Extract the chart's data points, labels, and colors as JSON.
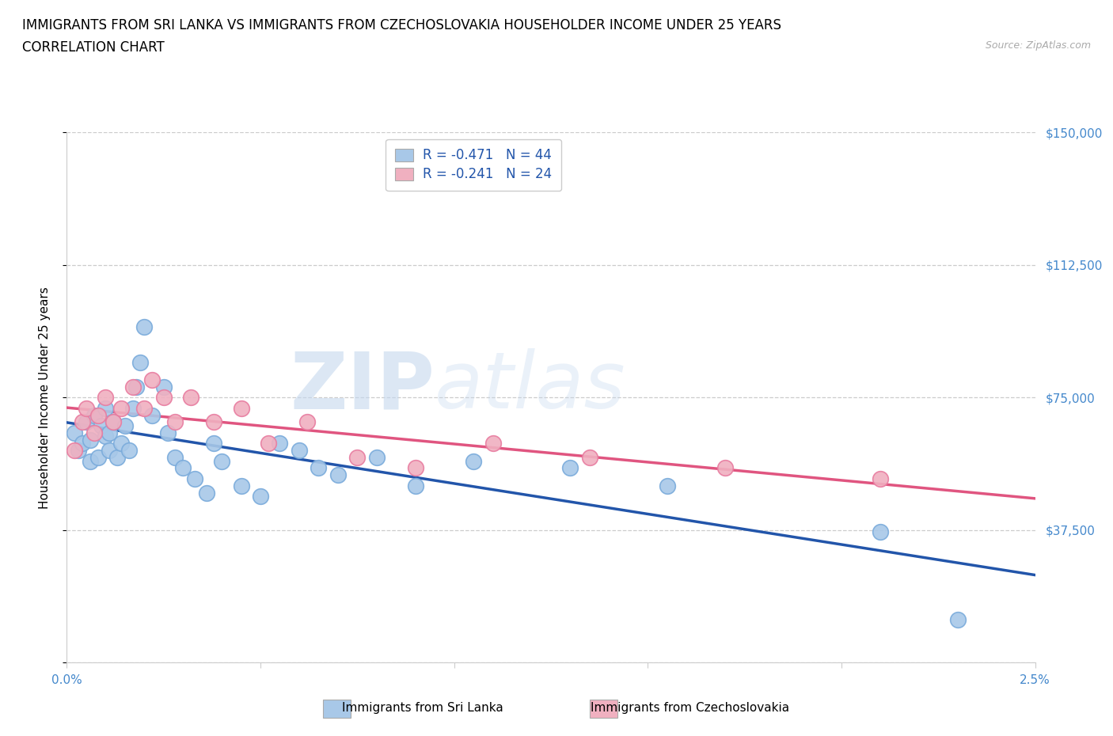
{
  "title_line1": "IMMIGRANTS FROM SRI LANKA VS IMMIGRANTS FROM CZECHOSLOVAKIA HOUSEHOLDER INCOME UNDER 25 YEARS",
  "title_line2": "CORRELATION CHART",
  "source_text": "Source: ZipAtlas.com",
  "ylabel": "Householder Income Under 25 years",
  "x_min": 0.0,
  "x_max": 2.5,
  "y_min": 0,
  "y_max": 150000,
  "y_ticks": [
    0,
    37500,
    75000,
    112500,
    150000
  ],
  "y_tick_labels": [
    "",
    "$37,500",
    "$75,000",
    "$112,500",
    "$150,000"
  ],
  "x_tick_positions": [
    0.0,
    0.5,
    1.0,
    1.5,
    2.0,
    2.5
  ],
  "x_tick_labels": [
    "0.0%",
    "",
    "",
    "",
    "",
    "2.5%"
  ],
  "sri_lanka_color": "#a8c8e8",
  "czechoslovakia_color": "#f0b0c0",
  "sri_lanka_edge_color": "#7aabdb",
  "czechoslovakia_edge_color": "#e87ca0",
  "sri_lanka_line_color": "#2255aa",
  "czechoslovakia_line_color": "#e05580",
  "tick_label_color": "#4488cc",
  "watermark_zip": "ZIP",
  "watermark_atlas": "atlas",
  "legend_r1": "R = -0.471   N = 44",
  "legend_r2": "R = -0.241   N = 24",
  "legend_label1": "Immigrants from Sri Lanka",
  "legend_label2": "Immigrants from Czechoslovakia",
  "sri_lanka_x": [
    0.02,
    0.03,
    0.04,
    0.05,
    0.06,
    0.06,
    0.07,
    0.08,
    0.09,
    0.1,
    0.1,
    0.11,
    0.11,
    0.12,
    0.13,
    0.14,
    0.15,
    0.16,
    0.17,
    0.18,
    0.19,
    0.2,
    0.22,
    0.25,
    0.26,
    0.28,
    0.3,
    0.33,
    0.36,
    0.38,
    0.4,
    0.45,
    0.5,
    0.55,
    0.6,
    0.65,
    0.7,
    0.8,
    0.9,
    1.05,
    1.3,
    1.55,
    2.1,
    2.3
  ],
  "sri_lanka_y": [
    65000,
    60000,
    62000,
    68000,
    57000,
    63000,
    70000,
    58000,
    67000,
    64000,
    72000,
    60000,
    65000,
    68000,
    58000,
    62000,
    67000,
    60000,
    72000,
    78000,
    85000,
    95000,
    70000,
    78000,
    65000,
    58000,
    55000,
    52000,
    48000,
    62000,
    57000,
    50000,
    47000,
    62000,
    60000,
    55000,
    53000,
    58000,
    50000,
    57000,
    55000,
    50000,
    37000,
    12000
  ],
  "czechoslovakia_x": [
    0.02,
    0.04,
    0.05,
    0.07,
    0.08,
    0.1,
    0.12,
    0.14,
    0.17,
    0.2,
    0.22,
    0.25,
    0.28,
    0.32,
    0.38,
    0.45,
    0.52,
    0.62,
    0.75,
    0.9,
    1.1,
    1.35,
    1.7,
    2.1
  ],
  "czechoslovakia_y": [
    60000,
    68000,
    72000,
    65000,
    70000,
    75000,
    68000,
    72000,
    78000,
    72000,
    80000,
    75000,
    68000,
    75000,
    68000,
    72000,
    62000,
    68000,
    58000,
    55000,
    62000,
    58000,
    55000,
    52000
  ],
  "background_color": "#ffffff",
  "grid_color": "#cccccc",
  "title_fontsize": 12,
  "axis_label_fontsize": 11,
  "tick_fontsize": 11,
  "dpi": 100
}
